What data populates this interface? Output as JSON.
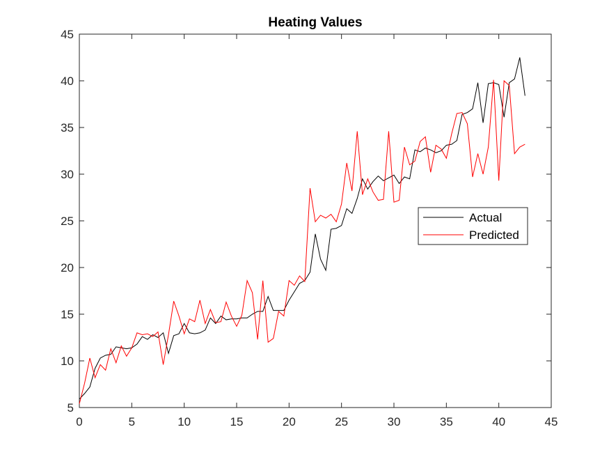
{
  "chart_data": {
    "type": "line",
    "title": "Heating Values",
    "xlabel": "",
    "ylabel": "",
    "xlim": [
      0,
      45
    ],
    "ylim": [
      5,
      45
    ],
    "xticks": [
      "0",
      "5",
      "10",
      "15",
      "20",
      "25",
      "30",
      "35",
      "40",
      "45"
    ],
    "yticks": [
      "5",
      "10",
      "15",
      "20",
      "25",
      "30",
      "35",
      "40",
      "45"
    ],
    "grid": false,
    "legend_position": "middle-right",
    "series": [
      {
        "name": "Actual",
        "color": "#000000",
        "x": [
          0,
          0.5,
          1,
          1.5,
          2,
          2.5,
          3,
          3.5,
          4,
          4.5,
          5,
          5.5,
          6,
          6.5,
          7,
          7.5,
          8,
          8.5,
          9,
          9.5,
          10,
          10.5,
          11,
          11.5,
          12,
          12.5,
          13,
          13.5,
          14,
          14.5,
          15,
          15.5,
          16,
          16.5,
          17,
          17.5,
          18,
          18.5,
          19,
          19.5,
          20,
          20.5,
          21,
          21.5,
          22,
          22.5,
          23,
          23.5,
          24,
          24.5,
          25,
          25.5,
          26,
          26.5,
          27,
          27.5,
          28,
          28.5,
          29,
          29.5,
          30,
          30.5,
          31,
          31.5,
          32,
          32.5,
          33,
          33.5,
          34,
          34.5,
          35,
          35.5,
          36,
          36.5,
          37,
          37.5,
          38,
          38.5,
          39,
          39.5,
          40,
          40.5,
          41,
          41.5,
          42,
          42.5
        ],
        "values": [
          5.9,
          6.5,
          7.2,
          9.2,
          10.3,
          10.6,
          10.7,
          11.5,
          11.4,
          11.3,
          11.4,
          11.8,
          12.6,
          12.3,
          12.8,
          12.5,
          13.0,
          10.8,
          12.7,
          12.9,
          14.0,
          13.0,
          12.9,
          13.0,
          13.3,
          14.6,
          14.0,
          14.8,
          14.4,
          14.5,
          14.5,
          14.6,
          14.6,
          15.0,
          15.3,
          15.3,
          16.9,
          15.4,
          15.4,
          15.4,
          16.5,
          17.4,
          18.3,
          18.6,
          19.5,
          23.6,
          20.9,
          19.7,
          24.1,
          24.2,
          24.5,
          26.3,
          25.8,
          27.4,
          29.5,
          28.4,
          29.2,
          29.8,
          29.3,
          29.6,
          29.9,
          29.0,
          29.7,
          29.5,
          32.6,
          32.4,
          32.8,
          32.6,
          32.3,
          32.5,
          33.1,
          33.2,
          33.6,
          36.4,
          36.6,
          37.0,
          39.8,
          35.5,
          39.7,
          39.8,
          39.6,
          36.1,
          39.8,
          40.2,
          42.5,
          38.4
        ],
        "legend_label": "Actual"
      },
      {
        "name": "Predicted",
        "color": "#ff0000",
        "x": [
          0,
          0.5,
          1,
          1.5,
          2,
          2.5,
          3,
          3.5,
          4,
          4.5,
          5,
          5.5,
          6,
          6.5,
          7,
          7.5,
          8,
          8.5,
          9,
          9.5,
          10,
          10.5,
          11,
          11.5,
          12,
          12.5,
          13,
          13.5,
          14,
          14.5,
          15,
          15.5,
          16,
          16.5,
          17,
          17.5,
          18,
          18.5,
          19,
          19.5,
          20,
          20.5,
          21,
          21.5,
          22,
          22.5,
          23,
          23.5,
          24,
          24.5,
          25,
          25.5,
          26,
          26.5,
          27,
          27.5,
          28,
          28.5,
          29,
          29.5,
          30,
          30.5,
          31,
          31.5,
          32,
          32.5,
          33,
          33.5,
          34,
          34.5,
          35,
          35.5,
          36,
          36.5,
          37,
          37.5,
          38,
          38.5,
          39,
          39.5,
          40,
          40.5,
          41,
          41.5,
          42,
          42.5
        ],
        "values": [
          5.4,
          7.6,
          10.3,
          8.2,
          9.6,
          9.0,
          11.3,
          9.8,
          11.6,
          10.5,
          11.4,
          13.0,
          12.8,
          12.9,
          12.6,
          13.1,
          9.6,
          12.8,
          16.4,
          14.8,
          12.9,
          14.5,
          14.2,
          16.5,
          14.0,
          15.5,
          14.1,
          14.2,
          16.3,
          14.8,
          13.7,
          14.9,
          18.6,
          17.3,
          12.3,
          18.6,
          12.0,
          12.4,
          15.3,
          14.8,
          18.6,
          18.1,
          19.1,
          18.5,
          28.5,
          24.9,
          25.6,
          25.3,
          25.7,
          24.9,
          26.8,
          31.2,
          28.2,
          34.6,
          27.8,
          29.5,
          28.1,
          27.2,
          27.3,
          34.6,
          27.0,
          27.2,
          32.9,
          31.0,
          31.4,
          33.5,
          34.0,
          30.2,
          33.1,
          32.7,
          31.7,
          34.3,
          36.5,
          36.6,
          35.4,
          29.7,
          32.2,
          30.0,
          32.9,
          40.1,
          29.3,
          40.0,
          39.5,
          32.2,
          32.9,
          33.2
        ],
        "legend_label": "Predicted"
      }
    ]
  }
}
